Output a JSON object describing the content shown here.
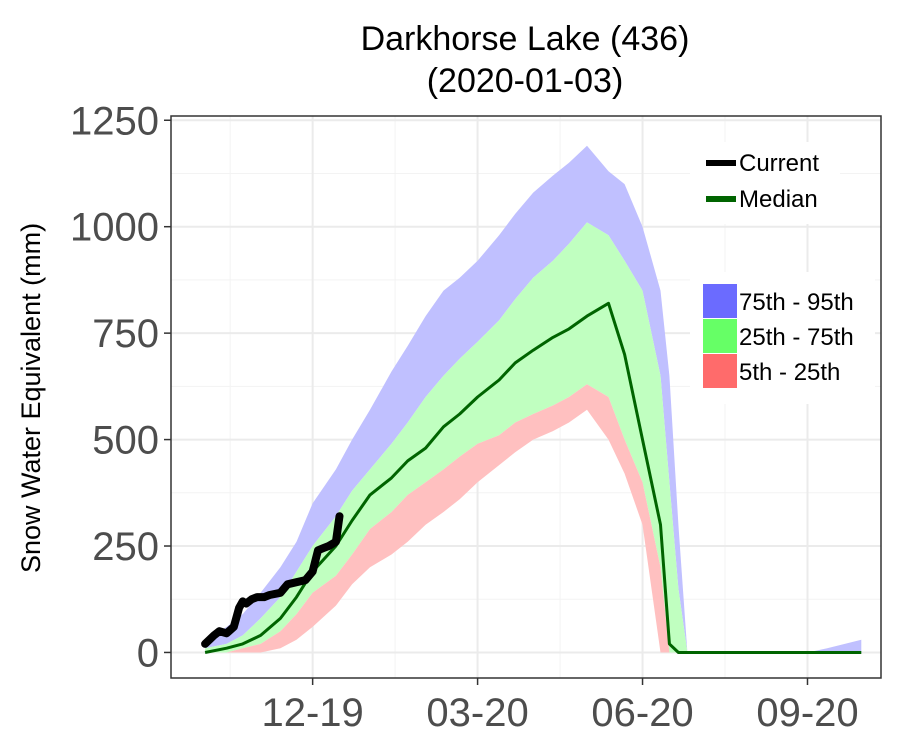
{
  "chart_data": {
    "type": "area",
    "title": "Darkhorse Lake (436)",
    "subtitle": "(2020-01-03)",
    "ylabel": "Snow Water Equivalent (mm)",
    "xlabel": "",
    "ylim": [
      -60,
      1260
    ],
    "y_ticks": [
      0,
      250,
      500,
      750,
      1000,
      1250
    ],
    "x_range": [
      "2019-10-01",
      "2020-10-31"
    ],
    "x_ticks": [
      {
        "date": "2019-12-19",
        "label": "12-19"
      },
      {
        "date": "2020-03-20",
        "label": "03-20"
      },
      {
        "date": "2020-06-20",
        "label": "06-20"
      },
      {
        "date": "2020-09-20",
        "label": "09-20"
      }
    ],
    "grid": true,
    "colors": {
      "band_75_95": "#c0c0ff",
      "band_25_75": "#c0ffc0",
      "band_5_25": "#ffc0c0",
      "median": "#006400",
      "current": "#000000",
      "legend_75_95": "#6b6bff",
      "legend_25_75": "#66ff66",
      "legend_5_25": "#ff6b6b"
    },
    "legend": {
      "placement": "top-right",
      "lines": [
        {
          "key": "current",
          "label": "Current"
        },
        {
          "key": "median",
          "label": "Median"
        }
      ],
      "bands": [
        {
          "key": "band_75_95",
          "label": "75th - 95th"
        },
        {
          "key": "band_25_75",
          "label": "25th - 75th"
        },
        {
          "key": "band_5_25",
          "label": "5th - 25th"
        }
      ]
    },
    "x": [
      "2019-10-20",
      "2019-11-01",
      "2019-11-10",
      "2019-11-20",
      "2019-12-01",
      "2019-12-10",
      "2019-12-19",
      "2020-01-01",
      "2020-01-10",
      "2020-01-20",
      "2020-02-01",
      "2020-02-10",
      "2020-02-20",
      "2020-03-01",
      "2020-03-10",
      "2020-03-20",
      "2020-04-01",
      "2020-04-10",
      "2020-04-20",
      "2020-05-01",
      "2020-05-10",
      "2020-05-20",
      "2020-06-01",
      "2020-06-10",
      "2020-06-20",
      "2020-06-30",
      "2020-07-05",
      "2020-07-10",
      "2020-07-15",
      "2020-07-20",
      "2020-08-01",
      "2020-08-20",
      "2020-09-10",
      "2020-09-20",
      "2020-10-01",
      "2020-10-20"
    ],
    "series": [
      {
        "key": "p95",
        "values": [
          30,
          60,
          90,
          140,
          200,
          260,
          350,
          430,
          500,
          570,
          660,
          720,
          790,
          850,
          880,
          920,
          980,
          1030,
          1080,
          1120,
          1150,
          1190,
          1130,
          1100,
          1000,
          850,
          650,
          300,
          0,
          0,
          0,
          0,
          0,
          0,
          10,
          30
        ]
      },
      {
        "key": "p75",
        "values": [
          10,
          20,
          40,
          80,
          130,
          190,
          250,
          320,
          380,
          430,
          490,
          540,
          600,
          650,
          690,
          730,
          780,
          830,
          880,
          920,
          960,
          1010,
          980,
          920,
          850,
          650,
          400,
          150,
          0,
          0,
          0,
          0,
          0,
          0,
          0,
          0
        ]
      },
      {
        "key": "median",
        "values": [
          0,
          10,
          20,
          40,
          80,
          130,
          190,
          250,
          310,
          370,
          410,
          450,
          480,
          530,
          560,
          600,
          640,
          680,
          710,
          740,
          760,
          790,
          820,
          700,
          500,
          300,
          20,
          0,
          0,
          0,
          0,
          0,
          0,
          0,
          0,
          0
        ]
      },
      {
        "key": "p25",
        "values": [
          0,
          0,
          10,
          20,
          50,
          90,
          140,
          180,
          230,
          290,
          330,
          370,
          400,
          430,
          460,
          490,
          510,
          540,
          560,
          580,
          600,
          630,
          600,
          500,
          400,
          200,
          0,
          0,
          0,
          0,
          0,
          0,
          0,
          0,
          0,
          0
        ]
      },
      {
        "key": "p5",
        "values": [
          0,
          0,
          0,
          0,
          10,
          30,
          60,
          110,
          160,
          200,
          230,
          260,
          300,
          330,
          360,
          400,
          440,
          470,
          500,
          520,
          540,
          570,
          500,
          420,
          300,
          0,
          0,
          0,
          0,
          0,
          0,
          0,
          0,
          0,
          0,
          0
        ]
      }
    ],
    "current": {
      "x": [
        "2019-10-20",
        "2019-10-25",
        "2019-10-28",
        "2019-11-01",
        "2019-11-05",
        "2019-11-08",
        "2019-11-10",
        "2019-11-12",
        "2019-11-15",
        "2019-11-18",
        "2019-11-22",
        "2019-11-25",
        "2019-12-01",
        "2019-12-05",
        "2019-12-10",
        "2019-12-15",
        "2019-12-19",
        "2019-12-22",
        "2019-12-25",
        "2019-12-28",
        "2020-01-01",
        "2020-01-03"
      ],
      "values": [
        20,
        40,
        50,
        45,
        60,
        105,
        120,
        115,
        125,
        130,
        130,
        135,
        140,
        160,
        165,
        170,
        190,
        240,
        245,
        250,
        260,
        320
      ]
    }
  }
}
